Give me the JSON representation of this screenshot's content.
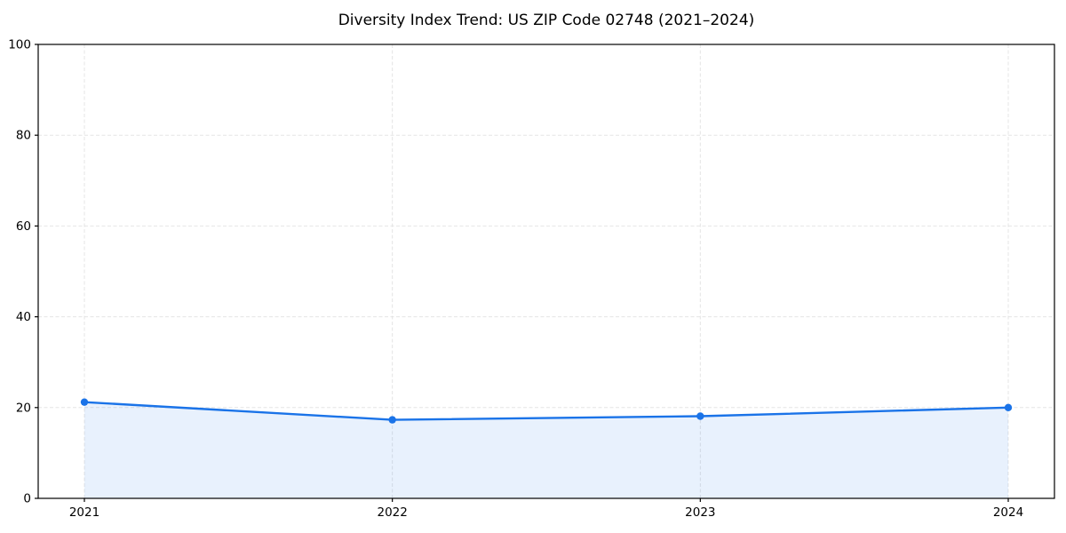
{
  "chart_data": {
    "type": "line",
    "title": "Diversity Index Trend: US ZIP Code 02748 (2021–2024)",
    "x": [
      2021,
      2022,
      2023,
      2024
    ],
    "values": [
      21.2,
      17.3,
      18.1,
      20.0
    ],
    "xlabel": "",
    "ylabel": "",
    "ylim": [
      0,
      100
    ],
    "yticks": [
      0,
      20,
      40,
      60,
      80,
      100
    ],
    "xticks": [
      2021,
      2022,
      2023,
      2024
    ],
    "x_tick_labels": [
      "2021",
      "2022",
      "2023",
      "2024"
    ],
    "y_tick_labels": [
      "0",
      "20",
      "40",
      "60",
      "80",
      "100"
    ],
    "grid": true,
    "grid_style": "dashed",
    "legend": "none",
    "colors": {
      "line": "#1a73e8",
      "marker": "#1a73e8",
      "fill": "#1a73e8",
      "fill_opacity": 0.1,
      "grid": "#dedede",
      "spine": "#000000",
      "background": "#ffffff",
      "title_text": "#000000",
      "tick_text": "#000000"
    }
  }
}
